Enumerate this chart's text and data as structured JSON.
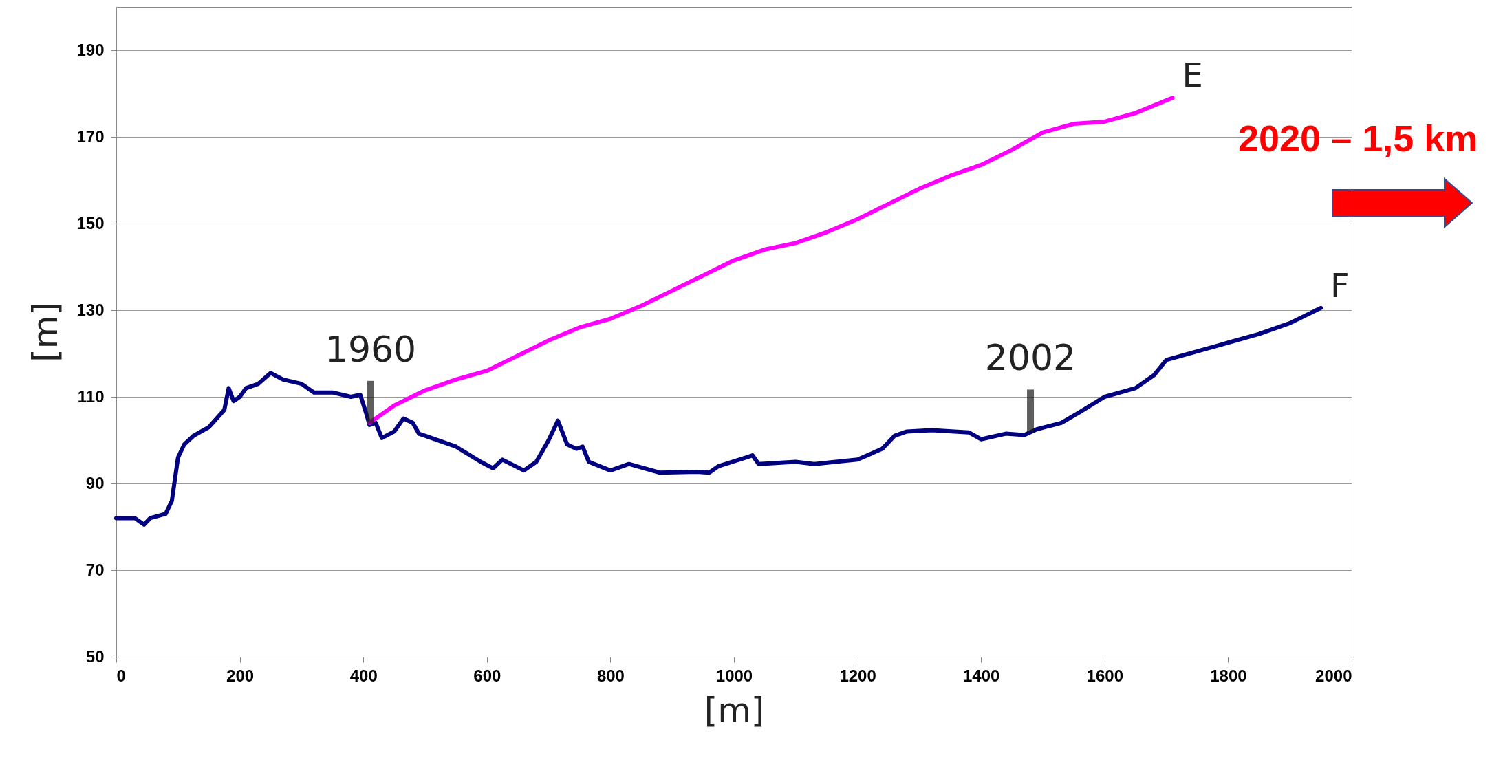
{
  "chart_data": {
    "type": "line",
    "xlabel": "[m]",
    "ylabel": "[m]",
    "xlim": [
      0,
      2000
    ],
    "ylim": [
      50,
      200
    ],
    "xticks": [
      0,
      200,
      400,
      600,
      800,
      1000,
      1200,
      1400,
      1600,
      1800,
      2000
    ],
    "yticks": [
      50,
      70,
      90,
      110,
      130,
      150,
      170,
      190
    ],
    "grid": "y",
    "marker": "none",
    "line_style": "solid",
    "series": [
      {
        "name": "F",
        "color": "#000080",
        "x": [
          0,
          30,
          45,
          55,
          80,
          90,
          100,
          110,
          125,
          150,
          175,
          182,
          190,
          200,
          210,
          230,
          250,
          270,
          300,
          320,
          350,
          380,
          395,
          405,
          410,
          420,
          430,
          450,
          465,
          480,
          490,
          500,
          550,
          590,
          610,
          625,
          660,
          680,
          700,
          715,
          730,
          745,
          755,
          765,
          800,
          830,
          880,
          940,
          960,
          975,
          1020,
          1030,
          1040,
          1100,
          1130,
          1200,
          1240,
          1260,
          1280,
          1320,
          1380,
          1400,
          1440,
          1470,
          1490,
          1530,
          1560,
          1600,
          1650,
          1680,
          1700,
          1750,
          1800,
          1850,
          1900,
          1950
        ],
        "values": [
          82,
          82,
          80.5,
          82,
          83,
          86,
          96,
          99,
          101,
          103,
          107,
          112,
          109,
          110,
          112,
          113,
          115.5,
          114,
          113,
          111,
          111,
          110,
          110.5,
          106,
          103.5,
          104,
          100.5,
          102,
          105,
          104,
          101.5,
          101,
          98.5,
          95,
          93.5,
          95.5,
          93,
          95,
          100,
          104.5,
          99,
          98,
          98.5,
          95,
          93,
          94.5,
          92.5,
          92.7,
          92.5,
          94,
          96,
          96.5,
          94.5,
          95,
          94.5,
          95.5,
          98,
          101,
          102,
          102.3,
          101.8,
          100.2,
          101.5,
          101.2,
          102.5,
          104,
          106.5,
          110,
          112,
          115,
          118.5,
          120.5,
          122.5,
          124.5,
          127,
          130.5
        ]
      },
      {
        "name": "E",
        "color": "#ff00ff",
        "x": [
          410,
          450,
          500,
          550,
          600,
          650,
          700,
          750,
          800,
          850,
          900,
          950,
          1000,
          1050,
          1100,
          1150,
          1200,
          1250,
          1300,
          1350,
          1400,
          1450,
          1500,
          1550,
          1600,
          1650,
          1710
        ],
        "values": [
          104,
          108,
          111.5,
          114,
          116,
          119.5,
          123,
          126,
          128,
          131,
          134.5,
          138,
          141.5,
          144,
          145.5,
          148,
          151,
          154.5,
          158,
          161,
          163.5,
          167,
          171,
          173,
          173.5,
          175.5,
          179
        ]
      }
    ],
    "annotations": [
      {
        "text": "1960",
        "x": 412,
        "y": 104
      },
      {
        "text": "2002",
        "x": 1480,
        "y": 102
      },
      "2020 – 1,5 km"
    ]
  }
}
